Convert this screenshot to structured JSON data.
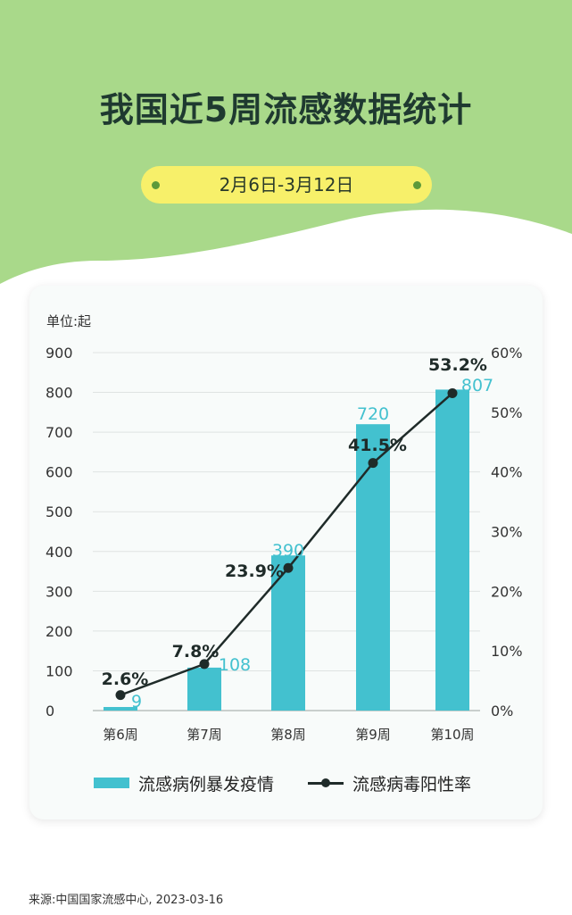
{
  "page": {
    "title": "我国近5周流感数据统计",
    "date_range": "2月6日-3月12日",
    "unit_label": "单位:起",
    "source": "来源:中国国家流感中心, 2023-03-16"
  },
  "legend": {
    "bar_label": "流感病例暴发疫情",
    "line_label": "流感病毒阳性率"
  },
  "colors": {
    "background_green": "#a9d98a",
    "bar": "#43c1cf",
    "bar_label": "#43c1cf",
    "line": "#1f2b29",
    "title": "#1f3a30",
    "date_pill": "#f7f06a",
    "pill_dot": "#5d9a3a"
  },
  "chart_data": {
    "type": "bar",
    "title": "我国近5周流感数据统计",
    "categories": [
      "第6周",
      "第7周",
      "第8周",
      "第9周",
      "第10周"
    ],
    "series": [
      {
        "name": "流感病例暴发疫情",
        "type": "bar",
        "axis": "left",
        "values": [
          9,
          108,
          390,
          720,
          807
        ],
        "labels": [
          "9",
          "108",
          "390",
          "720",
          "807"
        ]
      },
      {
        "name": "流感病毒阳性率",
        "type": "line",
        "axis": "right",
        "values": [
          2.6,
          7.8,
          23.9,
          41.5,
          53.2
        ],
        "labels": [
          "2.6%",
          "7.8%",
          "23.9%",
          "41.5%",
          "53.2%"
        ]
      }
    ],
    "ylabel": "单位:起",
    "ylim": [
      0,
      900
    ],
    "yticks": [
      "0",
      "100",
      "200",
      "300",
      "400",
      "500",
      "600",
      "700",
      "800",
      "900"
    ],
    "y2lim": [
      0,
      60
    ],
    "y2ticks": [
      "0%",
      "10%",
      "20%",
      "30%",
      "40%",
      "50%",
      "60%"
    ],
    "grid": true,
    "legend_position": "bottom"
  }
}
